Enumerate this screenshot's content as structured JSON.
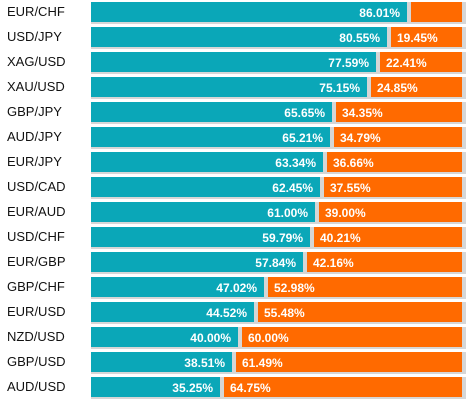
{
  "chart_data": {
    "type": "bar",
    "stacked": true,
    "orientation": "horizontal",
    "categories": [
      "EUR/CHF",
      "USD/JPY",
      "XAG/USD",
      "XAU/USD",
      "GBP/JPY",
      "AUD/JPY",
      "EUR/JPY",
      "USD/CAD",
      "EUR/AUD",
      "USD/CHF",
      "EUR/GBP",
      "GBP/CHF",
      "EUR/USD",
      "NZD/USD",
      "GBP/USD",
      "AUD/USD"
    ],
    "series": [
      {
        "color": "#0aa7b8",
        "values": [
          86.01,
          80.55,
          77.59,
          75.15,
          65.65,
          65.21,
          63.34,
          62.45,
          61.0,
          59.79,
          57.84,
          47.02,
          44.52,
          40.0,
          38.51,
          35.25
        ],
        "labels": [
          "86.01%",
          "80.55%",
          "77.59%",
          "75.15%",
          "65.65%",
          "65.21%",
          "63.34%",
          "62.45%",
          "61.00%",
          "59.79%",
          "57.84%",
          "47.02%",
          "44.52%",
          "40.00%",
          "38.51%",
          "35.25%"
        ]
      },
      {
        "color": "#ff6a00",
        "values": [
          13.99,
          19.45,
          22.41,
          24.85,
          34.35,
          34.79,
          36.66,
          37.55,
          39.0,
          40.21,
          42.16,
          52.98,
          55.48,
          60.0,
          61.49,
          64.75
        ],
        "labels": [
          "",
          "19.45%",
          "22.41%",
          "24.85%",
          "34.35%",
          "34.79%",
          "36.66%",
          "37.55%",
          "39.00%",
          "40.21%",
          "42.16%",
          "52.98%",
          "55.48%",
          "60.00%",
          "61.49%",
          "64.75%"
        ]
      }
    ],
    "xlim": [
      0,
      100
    ],
    "grid": false,
    "legend": "none"
  }
}
